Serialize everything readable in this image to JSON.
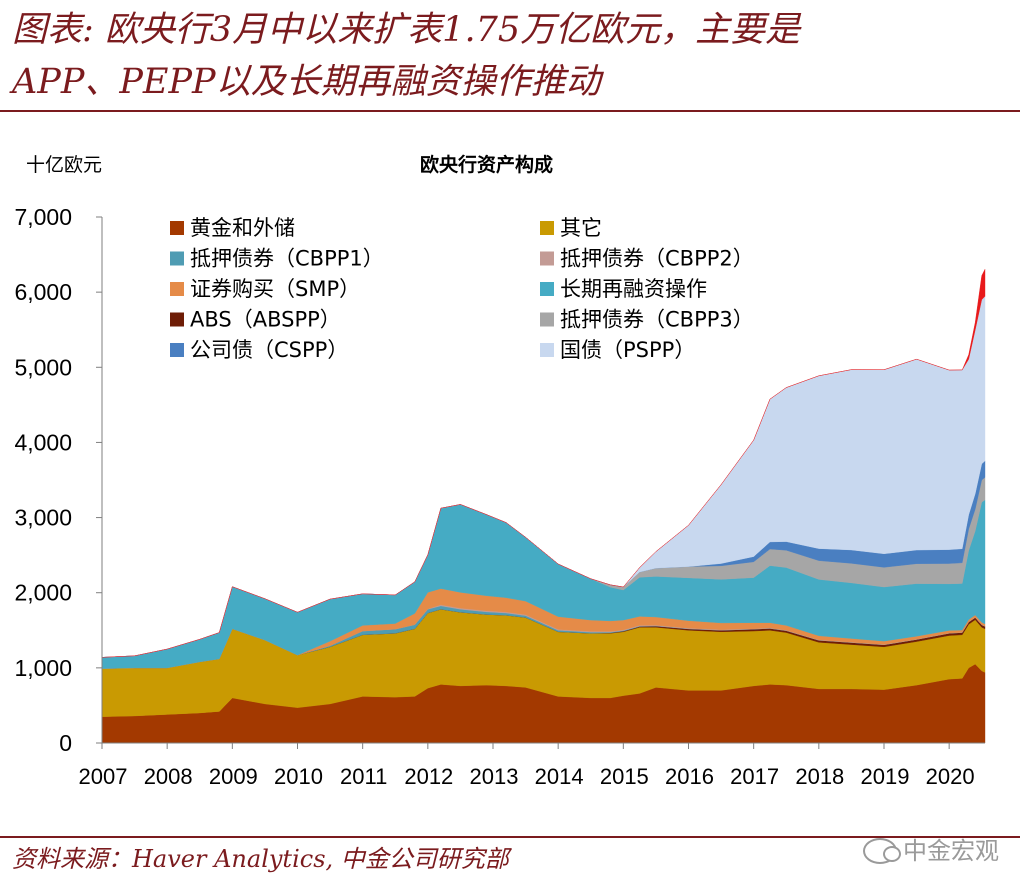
{
  "headline": {
    "line1": "图表: 欧央行3月中以来扩表1.75万亿欧元，主要是",
    "line2": "APP、PEPP以及长期再融资操作推动"
  },
  "source": "资料来源：Haver Analytics, 中金公司研究部",
  "brand": "中金宏观",
  "chart_data": {
    "type": "area",
    "title": "欧央行资产构成",
    "ylabel": "十亿欧元",
    "ylim": [
      0,
      7000
    ],
    "yticks": [
      0,
      1000,
      2000,
      3000,
      4000,
      5000,
      6000,
      7000
    ],
    "ytick_labels": [
      "0",
      "1,000",
      "2,000",
      "3,000",
      "4,000",
      "5,000",
      "6,000",
      "7,000"
    ],
    "xlim": [
      2007.0,
      2020.55
    ],
    "xtick_labels": [
      "2007",
      "2008",
      "2009",
      "2010",
      "2011",
      "2012",
      "2013",
      "2014",
      "2015",
      "2016",
      "2017",
      "2018",
      "2019",
      "2020"
    ],
    "x": [
      2007.0,
      2007.5,
      2008.0,
      2008.5,
      2008.8,
      2009.0,
      2009.5,
      2010.0,
      2010.5,
      2011.0,
      2011.5,
      2011.8,
      2012.0,
      2012.2,
      2012.5,
      2012.9,
      2013.2,
      2013.5,
      2014.0,
      2014.5,
      2014.8,
      2015.0,
      2015.25,
      2015.5,
      2016.0,
      2016.5,
      2017.0,
      2017.25,
      2017.5,
      2018.0,
      2018.5,
      2019.0,
      2019.5,
      2020.0,
      2020.2,
      2020.3,
      2020.4,
      2020.5,
      2020.55
    ],
    "series": [
      {
        "name": "黄金和外储",
        "color": "#a33900",
        "values": [
          350,
          360,
          380,
          400,
          420,
          600,
          520,
          470,
          520,
          620,
          610,
          620,
          730,
          780,
          760,
          770,
          760,
          740,
          620,
          600,
          600,
          630,
          660,
          740,
          700,
          700,
          760,
          780,
          770,
          720,
          720,
          710,
          770,
          850,
          860,
          1000,
          1050,
          960,
          940
        ]
      },
      {
        "name": "其它",
        "color": "#c99a02",
        "values": [
          640,
          640,
          620,
          680,
          700,
          920,
          850,
          700,
          760,
          820,
          850,
          900,
          1000,
          1000,
          980,
          940,
          940,
          930,
          860,
          860,
          860,
          850,
          880,
          800,
          800,
          780,
          730,
          720,
          700,
          620,
          590,
          570,
          580,
          580,
          580,
          580,
          590,
          580,
          580
        ]
      },
      {
        "name": "ABS（ABSPP）",
        "color": "#6e1d06",
        "values": [
          0,
          0,
          0,
          0,
          0,
          0,
          0,
          0,
          0,
          0,
          0,
          0,
          0,
          0,
          0,
          0,
          0,
          0,
          0,
          0,
          5,
          8,
          10,
          15,
          18,
          20,
          25,
          25,
          25,
          27,
          27,
          27,
          28,
          30,
          30,
          30,
          30,
          32,
          32
        ]
      },
      {
        "name": "抵押债券（CBPP1）",
        "color": "#4f9cb3",
        "values": [
          0,
          0,
          0,
          0,
          0,
          0,
          0,
          0,
          15,
          50,
          55,
          55,
          50,
          45,
          40,
          35,
          30,
          25,
          20,
          15,
          10,
          8,
          5,
          3,
          2,
          1,
          0,
          0,
          0,
          0,
          0,
          0,
          0,
          0,
          0,
          0,
          0,
          0,
          0
        ]
      },
      {
        "name": "抵押债券（CBPP2）",
        "color": "#c39b95",
        "values": [
          0,
          0,
          0,
          0,
          0,
          0,
          0,
          0,
          0,
          0,
          0,
          0,
          5,
          15,
          15,
          15,
          14,
          13,
          12,
          11,
          10,
          10,
          10,
          9,
          8,
          7,
          6,
          6,
          5,
          5,
          4,
          4,
          3,
          3,
          3,
          3,
          3,
          3,
          3
        ]
      },
      {
        "name": "证券购买（SMP）",
        "color": "#e58b48",
        "values": [
          0,
          0,
          0,
          0,
          0,
          0,
          0,
          0,
          60,
          75,
          75,
          150,
          220,
          215,
          210,
          200,
          190,
          180,
          170,
          150,
          140,
          130,
          120,
          110,
          100,
          90,
          80,
          70,
          65,
          55,
          50,
          45,
          40,
          35,
          30,
          30,
          30,
          30,
          30
        ]
      },
      {
        "name": "长期再融资操作",
        "color": "#45abc4",
        "values": [
          150,
          160,
          250,
          300,
          350,
          560,
          550,
          570,
          560,
          420,
          380,
          420,
          500,
          1070,
          1170,
          1080,
          1000,
          850,
          700,
          550,
          450,
          400,
          520,
          540,
          570,
          580,
          600,
          760,
          770,
          750,
          740,
          720,
          700,
          620,
          620,
          920,
          1120,
          1600,
          1650
        ]
      },
      {
        "name": "抵押债券（CBPP3）",
        "color": "#a6a6a6",
        "values": [
          0,
          0,
          0,
          0,
          0,
          0,
          0,
          0,
          0,
          0,
          0,
          0,
          0,
          0,
          0,
          0,
          0,
          0,
          0,
          0,
          30,
          40,
          70,
          110,
          150,
          180,
          210,
          220,
          230,
          250,
          260,
          262,
          265,
          270,
          275,
          285,
          290,
          295,
          300
        ]
      },
      {
        "name": "公司债（CSPP）",
        "color": "#4a7fc1",
        "values": [
          0,
          0,
          0,
          0,
          0,
          0,
          0,
          0,
          0,
          0,
          0,
          0,
          0,
          0,
          0,
          0,
          0,
          0,
          0,
          0,
          0,
          0,
          0,
          0,
          0,
          30,
          70,
          95,
          115,
          160,
          178,
          180,
          182,
          185,
          187,
          190,
          205,
          215,
          220
        ]
      },
      {
        "name": "国债（PSPP）",
        "color": "#c8d8ef",
        "values": [
          0,
          0,
          0,
          0,
          0,
          0,
          0,
          0,
          0,
          0,
          0,
          0,
          0,
          0,
          0,
          0,
          0,
          0,
          0,
          0,
          0,
          0,
          60,
          220,
          550,
          1050,
          1550,
          1900,
          2050,
          2300,
          2400,
          2450,
          2540,
          2390,
          2380,
          2070,
          2180,
          2185,
          2190
        ]
      },
      {
        "name": "红色区域",
        "color": "#e8191b",
        "values": [
          0,
          0,
          0,
          0,
          0,
          0,
          0,
          0,
          0,
          0,
          0,
          0,
          0,
          0,
          0,
          0,
          0,
          0,
          0,
          0,
          0,
          0,
          0,
          0,
          0,
          0,
          0,
          0,
          0,
          0,
          0,
          0,
          0,
          0,
          0,
          60,
          100,
          320,
          360
        ]
      }
    ],
    "legend": [
      {
        "label": "黄金和外储",
        "color": "#a33900"
      },
      {
        "label": "其它",
        "color": "#c99a02"
      },
      {
        "label": "抵押债券（CBPP1）",
        "color": "#4f9cb3"
      },
      {
        "label": "抵押债券（CBPP2）",
        "color": "#c39b95"
      },
      {
        "label": "证券购买（SMP）",
        "color": "#e58b48"
      },
      {
        "label": "长期再融资操作",
        "color": "#45abc4"
      },
      {
        "label": "ABS（ABSPP）",
        "color": "#6e1d06"
      },
      {
        "label": "抵押债券（CBPP3）",
        "color": "#a6a6a6"
      },
      {
        "label": "公司债（CSPP）",
        "color": "#4a7fc1"
      },
      {
        "label": "国债（PSPP）",
        "color": "#c8d8ef"
      }
    ]
  }
}
